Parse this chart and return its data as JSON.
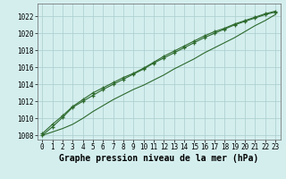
{
  "title": "Graphe pression niveau de la mer (hPa)",
  "x": [
    0,
    1,
    2,
    3,
    4,
    5,
    6,
    7,
    8,
    9,
    10,
    11,
    12,
    13,
    14,
    15,
    16,
    17,
    18,
    19,
    20,
    21,
    22,
    23
  ],
  "line1": [
    1008.2,
    1009.3,
    1010.3,
    1011.4,
    1012.2,
    1013.0,
    1013.6,
    1014.2,
    1014.8,
    1015.3,
    1015.9,
    1016.6,
    1017.3,
    1017.9,
    1018.5,
    1019.1,
    1019.7,
    1020.2,
    1020.6,
    1021.1,
    1021.5,
    1021.9,
    1022.3,
    1022.6
  ],
  "line2": [
    1008.0,
    1009.0,
    1010.1,
    1011.3,
    1012.0,
    1012.7,
    1013.4,
    1014.0,
    1014.6,
    1015.2,
    1015.8,
    1016.5,
    1017.1,
    1017.7,
    1018.3,
    1018.9,
    1019.5,
    1020.0,
    1020.5,
    1021.0,
    1021.4,
    1021.8,
    1022.2,
    1022.5
  ],
  "line3": [
    1008.0,
    1008.4,
    1008.8,
    1009.3,
    1010.0,
    1010.8,
    1011.5,
    1012.2,
    1012.8,
    1013.4,
    1013.9,
    1014.5,
    1015.1,
    1015.8,
    1016.4,
    1017.0,
    1017.7,
    1018.3,
    1018.9,
    1019.5,
    1020.2,
    1020.9,
    1021.5,
    1022.2
  ],
  "line_color": "#2d6a2d",
  "bg_color": "#d4eeee",
  "grid_color": "#aacccc",
  "ylim": [
    1007.5,
    1023.5
  ],
  "yticks": [
    1008,
    1010,
    1012,
    1014,
    1016,
    1018,
    1020,
    1022
  ],
  "xlim": [
    -0.5,
    23.5
  ],
  "xticks": [
    0,
    1,
    2,
    3,
    4,
    5,
    6,
    7,
    8,
    9,
    10,
    11,
    12,
    13,
    14,
    15,
    16,
    17,
    18,
    19,
    20,
    21,
    22,
    23
  ],
  "marker": "+",
  "linewidth": 0.8,
  "markersize": 3.5,
  "title_fontsize": 7,
  "tick_fontsize": 5.5
}
